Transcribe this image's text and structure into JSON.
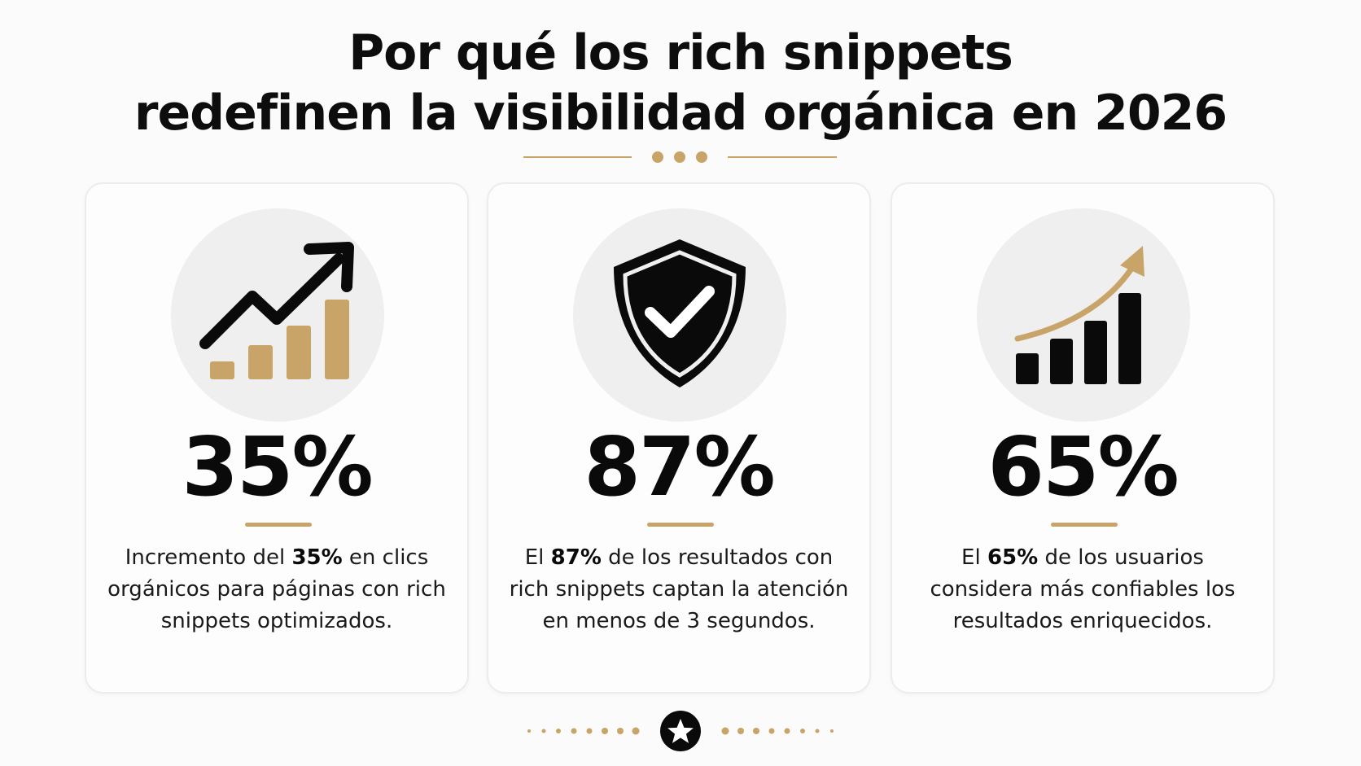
{
  "header": {
    "title_line1": "Por qué los rich snippets",
    "title_line2": "redefinen la visibilidad orgánica en 2026"
  },
  "accent_color": "#c9a469",
  "text_color": "#0a0a0a",
  "cards": [
    {
      "icon": "growth-chart-arrow-icon",
      "value": "35%",
      "desc_pre": "Incremento del ",
      "desc_bold": "35%",
      "desc_post": " en clics orgánicos para páginas con rich snippets optimizados."
    },
    {
      "icon": "shield-check-icon",
      "value": "87%",
      "desc_pre": "El ",
      "desc_bold": "87%",
      "desc_post": " de los resultados con rich snippets captan la atención en menos de 3 segundos."
    },
    {
      "icon": "bar-chart-trend-icon",
      "value": "65%",
      "desc_pre": "El ",
      "desc_bold": "65%",
      "desc_post": " de los usuarios considera más confiables los resultados enriquecidos."
    }
  ],
  "footer": {
    "icon": "star-icon"
  }
}
